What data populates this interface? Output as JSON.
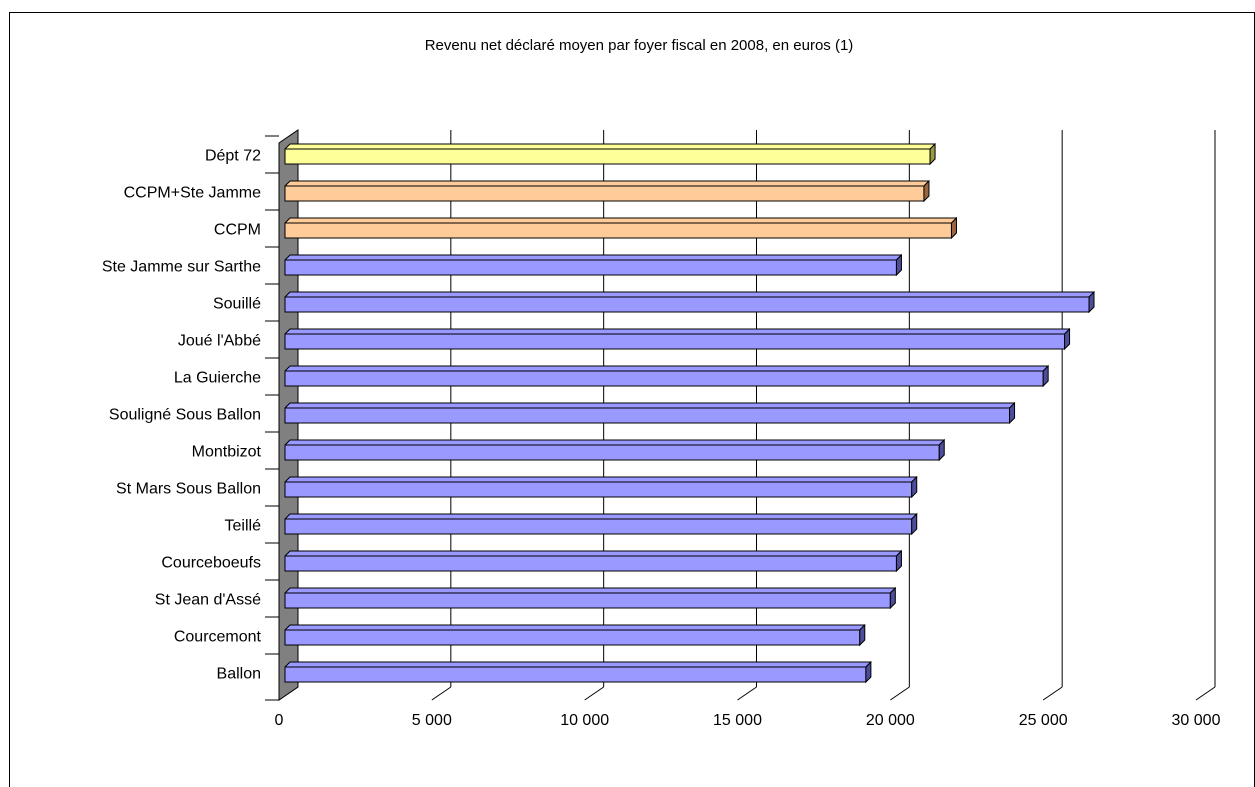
{
  "chart_data": {
    "type": "bar",
    "orientation": "horizontal",
    "title": "Revenu net déclaré moyen par foyer fiscal en 2008, en euros (1)",
    "xlabel": "",
    "ylabel": "",
    "xlim": [
      0,
      30000
    ],
    "x_ticks": [
      "0",
      "5 000",
      "10 000",
      "15 000",
      "20 000",
      "25 000",
      "30 000"
    ],
    "x_tick_values": [
      0,
      5000,
      10000,
      15000,
      20000,
      25000,
      30000
    ],
    "grid": true,
    "style": "3d",
    "categories": [
      "Dépt 72",
      "CCPM+Ste Jamme",
      "CCPM",
      "Ste Jamme sur Sarthe",
      "Souillé",
      "Joué l'Abbé",
      "La Guierche",
      "Souligné Sous Ballon",
      "Montbizot",
      "St Mars Sous Ballon",
      "Teillé",
      "Courceboeufs",
      "St Jean d'Assé",
      "Courcemont",
      "Ballon"
    ],
    "values": [
      21300,
      21100,
      22000,
      20200,
      26500,
      25700,
      25000,
      23900,
      21600,
      20700,
      20700,
      20200,
      20000,
      19000,
      19200
    ],
    "bar_colors": [
      "#ffff99",
      "#ffcc99",
      "#ffcc99",
      "#9999ff",
      "#9999ff",
      "#9999ff",
      "#9999ff",
      "#9999ff",
      "#9999ff",
      "#9999ff",
      "#9999ff",
      "#9999ff",
      "#9999ff",
      "#9999ff",
      "#9999ff"
    ]
  }
}
